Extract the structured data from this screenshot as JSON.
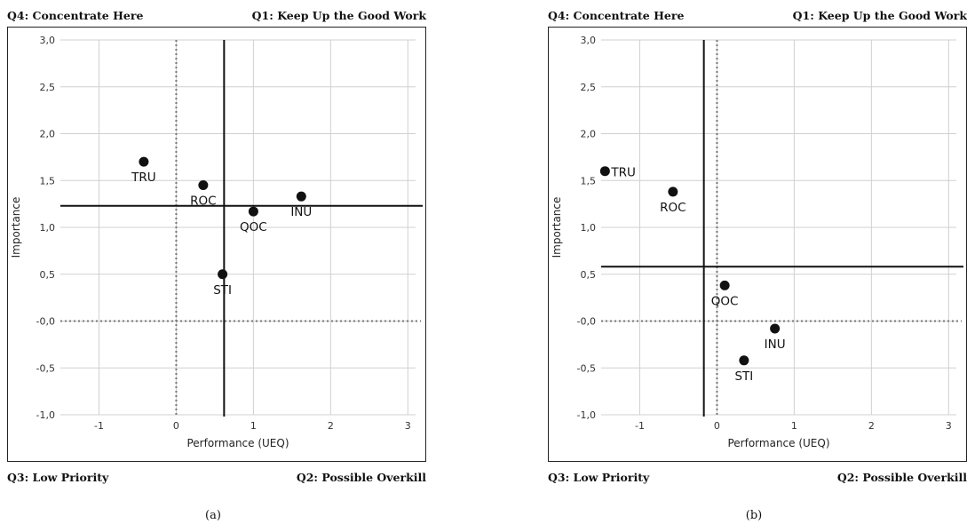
{
  "panels": [
    {
      "quadrants": {
        "q4": "Q4: Concentrate Here",
        "q1": "Q1: Keep Up the Good Work",
        "q3": "Q3: Low Priority",
        "q2": "Q2: Possible Overkill"
      },
      "caption": "(a)"
    },
    {
      "quadrants": {
        "q4": "Q4: Concentrate Here",
        "q1": "Q1: Keep Up the Good Work",
        "q3": "Q3: Low Priority",
        "q2": "Q2: Possible Overkill"
      },
      "caption": "(b)"
    }
  ],
  "chart_data": [
    {
      "type": "scatter",
      "xlabel": "Performance (UEQ)",
      "ylabel": "Importance",
      "xlim": [
        -1.5,
        3.1
      ],
      "ylim": [
        -1.0,
        3.0
      ],
      "xticks": [
        -1,
        0,
        1,
        2,
        3
      ],
      "xtick_labels": [
        "-1",
        "0",
        "1",
        "2",
        "3"
      ],
      "yticks": [
        3.0,
        2.5,
        2.0,
        1.5,
        1.0,
        0.5,
        0.0,
        -0.5,
        -1.0
      ],
      "ytick_labels": [
        "3,0",
        "2,5",
        "2,0",
        "1,5",
        "1,0",
        "0,5",
        "-0,0",
        "-0,5",
        "-1,0"
      ],
      "grid": true,
      "mean_lines": {
        "x": 0.62,
        "y": 1.23
      },
      "points": [
        {
          "label": "TRU",
          "x": -0.42,
          "y": 1.7,
          "label_pos": "below"
        },
        {
          "label": "ROC",
          "x": 0.35,
          "y": 1.45,
          "label_pos": "below"
        },
        {
          "label": "QOC",
          "x": 1.0,
          "y": 1.17,
          "label_pos": "below"
        },
        {
          "label": "INU",
          "x": 1.62,
          "y": 1.33,
          "label_pos": "below"
        },
        {
          "label": "STI",
          "x": 0.6,
          "y": 0.5,
          "label_pos": "below"
        }
      ]
    },
    {
      "type": "scatter",
      "xlabel": "Performance (UEQ)",
      "ylabel": "Importance",
      "xlim": [
        -1.5,
        3.1
      ],
      "ylim": [
        -1.0,
        3.0
      ],
      "xticks": [
        -1,
        0,
        1,
        2,
        3
      ],
      "xtick_labels": [
        "-1",
        "0",
        "1",
        "2",
        "3"
      ],
      "yticks": [
        3.0,
        2.5,
        2.0,
        1.5,
        1.0,
        0.5,
        0.0,
        -0.5,
        -1.0
      ],
      "ytick_labels": [
        "3,0",
        "2,5",
        "2,0",
        "1,5",
        "1,0",
        "0,5",
        "-0,0",
        "-0,5",
        "-1,0"
      ],
      "grid": true,
      "mean_lines": {
        "x": -0.17,
        "y": 0.58
      },
      "points": [
        {
          "label": "TRU",
          "x": -1.45,
          "y": 1.6,
          "label_pos": "right"
        },
        {
          "label": "ROC",
          "x": -0.57,
          "y": 1.38,
          "label_pos": "below"
        },
        {
          "label": "QOC",
          "x": 0.1,
          "y": 0.38,
          "label_pos": "below"
        },
        {
          "label": "INU",
          "x": 0.75,
          "y": -0.08,
          "label_pos": "below"
        },
        {
          "label": "STI",
          "x": 0.35,
          "y": -0.42,
          "label_pos": "below"
        }
      ]
    }
  ]
}
